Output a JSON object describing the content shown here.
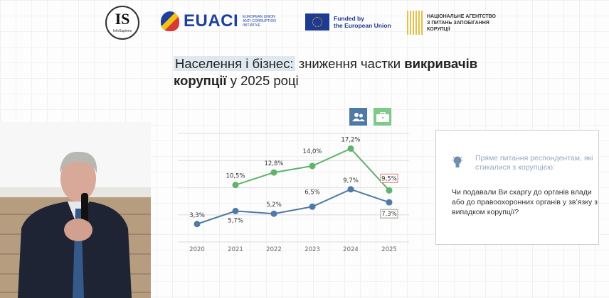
{
  "logos": {
    "infosapiens": {
      "mark": "IS",
      "name": "InfoSapiens"
    },
    "euaci": {
      "name": "EUACI",
      "subtitle": "EUROPEAN UNION ANTI-CORRUPTION INITIATIVE"
    },
    "eu": {
      "line1": "Funded by",
      "line2": "the European Union"
    },
    "nazk": {
      "line1": "НАЦІОНАЛЬНЕ АГЕНТСТВО",
      "line2": "З ПИТАНЬ ЗАПОБІГАННЯ",
      "line3": "КОРУПЦІЇ"
    }
  },
  "title": {
    "highlight": "Населення і бізнес:",
    "part2": " зниження частки ",
    "bold1": "викривачів",
    "bold2": "корупції",
    "part3": " у 2025 році"
  },
  "legend": [
    {
      "icon": "people-icon",
      "series": "population",
      "color": "#4f7aa6"
    },
    {
      "icon": "briefcase-icon",
      "series": "business",
      "color": "#5fb36a"
    }
  ],
  "infobox": {
    "icon": "lightbulb-icon",
    "hint": "Пряме питання респондентам, які стикалися з корупцією:",
    "question": "Чи подавали Ви скаргу до органів влади або до правоохоронних органів у зв’язку з випадком корупції?"
  },
  "chart_data": {
    "type": "line",
    "title": "",
    "xlabel": "",
    "ylabel": "",
    "x": [
      "2020",
      "2021",
      "2022",
      "2023",
      "2024",
      "2025"
    ],
    "ylim": [
      0,
      20
    ],
    "grid": true,
    "series": [
      {
        "name": "population",
        "color": "#4f7aa6",
        "values": [
          3.3,
          5.7,
          5.2,
          6.5,
          9.7,
          7.3
        ],
        "labels": [
          "3,3%",
          "5,7%",
          "5,2%",
          "6,5%",
          "9,7%",
          "7,3%"
        ]
      },
      {
        "name": "business",
        "color": "#5fb36a",
        "values": [
          null,
          10.5,
          12.8,
          14.0,
          17.2,
          9.5
        ],
        "labels": [
          "",
          "10,5%",
          "12,8%",
          "14,0%",
          "17,2%",
          "9,5%"
        ]
      }
    ]
  }
}
